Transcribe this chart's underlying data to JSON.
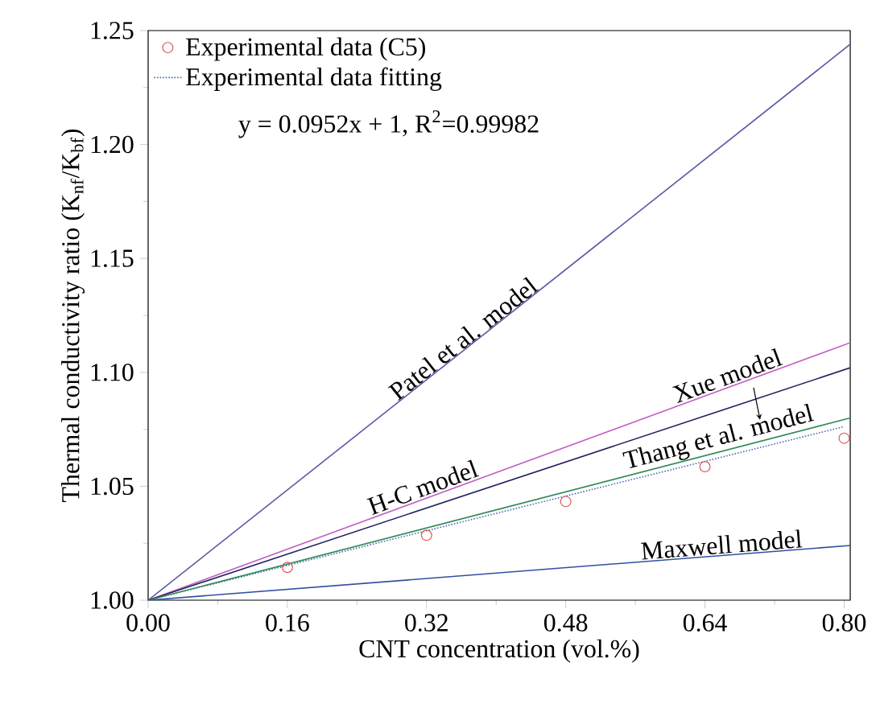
{
  "chart_data": {
    "type": "line",
    "xlabel": "CNT concentration (vol.%)",
    "ylabel": "Thermal conductivity ratio (K$_{nf}$/K$_{bf}$)",
    "xlim": [
      0,
      0.807
    ],
    "ylim": [
      1.0,
      1.25
    ],
    "xticks": [
      {
        "value": 0,
        "label": "0.00"
      },
      {
        "value": 0.16,
        "label": "0.16"
      },
      {
        "value": 0.32,
        "label": "0.32"
      },
      {
        "value": 0.48,
        "label": "0.48"
      },
      {
        "value": 0.64,
        "label": "0.64"
      },
      {
        "value": 0.8,
        "label": "0.80"
      }
    ],
    "yticks": [
      {
        "value": 1.0,
        "label": "1.00"
      },
      {
        "value": 1.05,
        "label": "1.05"
      },
      {
        "value": 1.1,
        "label": "1.10"
      },
      {
        "value": 1.15,
        "label": "1.15"
      },
      {
        "value": 1.2,
        "label": "1.20"
      },
      {
        "value": 1.25,
        "label": "1.25"
      }
    ],
    "legend": "top left",
    "grid": false,
    "series": [
      {
        "name": "Experimental data (C5)",
        "type": "scatter",
        "marker": "circle",
        "color": "#e05a5a",
        "x": [
          0.16,
          0.32,
          0.48,
          0.64,
          0.8
        ],
        "values": [
          1.0144,
          1.0285,
          1.0433,
          1.0586,
          1.0711
        ]
      },
      {
        "name": "Experimental data fitting",
        "line_style": "dotted",
        "color": "#4a6ab0",
        "x": [
          0,
          0.8
        ],
        "values": [
          1.0,
          1.0762
        ]
      },
      {
        "line_style": "solid",
        "color": "#5a5aa8",
        "x": [
          0,
          0.807
        ],
        "values": [
          1.0,
          1.244
        ]
      },
      {
        "line_style": "solid",
        "color": "#c060c0",
        "x": [
          0,
          0.807
        ],
        "values": [
          1.0,
          1.113
        ]
      },
      {
        "line_style": "solid",
        "color": "#202060",
        "x": [
          0,
          0.807
        ],
        "values": [
          1.0,
          1.102
        ]
      },
      {
        "line_style": "solid",
        "color": "#2e8b57",
        "x": [
          0,
          0.807
        ],
        "values": [
          1.0,
          1.08
        ]
      },
      {
        "line_style": "solid",
        "color": "#3050a0",
        "x": [
          0,
          0.807
        ],
        "values": [
          1.0,
          1.024
        ]
      }
    ],
    "annotations": [
      "y = 0.0952x + 1, R$^{2}$=0.99982",
      {
        "text": "Patel et al. model",
        "x": 0.37,
        "y": 1.111
      },
      {
        "text": "Xue model",
        "x": 0.67,
        "y": 1.094
      },
      {
        "text": "H-C model",
        "x": 0.32,
        "y": 1.045
      },
      {
        "text": "Thang et al. model",
        "x": 0.66,
        "y": 1.065
      },
      {
        "text": "Maxwell model",
        "x": 0.66,
        "y": 1.0195
      }
    ]
  }
}
